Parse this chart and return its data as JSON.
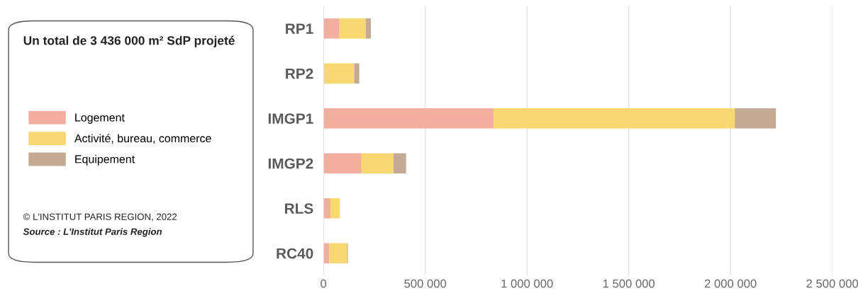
{
  "chart_data": {
    "type": "bar",
    "orientation": "horizontal",
    "stacked": true,
    "title": "Un total de 3 436 000 m² SdP projeté",
    "categories": [
      "RP1",
      "RP2",
      "IMGP1",
      "IMGP2",
      "RLS",
      "RC40"
    ],
    "series": [
      {
        "name": "Logement",
        "color": "#f4aea0",
        "values": [
          76000,
          5000,
          836000,
          187000,
          34000,
          28000
        ]
      },
      {
        "name": "Activité, bureau, commerce",
        "color": "#f9d773",
        "values": [
          132000,
          146000,
          1185000,
          157000,
          47000,
          88000
        ]
      },
      {
        "name": "Equipement",
        "color": "#c4a994",
        "values": [
          25000,
          25000,
          202000,
          62000,
          0,
          4000
        ]
      }
    ],
    "xlim": [
      0,
      2500000
    ],
    "xticks": [
      {
        "value": 0,
        "label": "0"
      },
      {
        "value": 500000,
        "label": "500 000"
      },
      {
        "value": 1000000,
        "label": "1 000 000"
      },
      {
        "value": 1500000,
        "label": "1 500 000"
      },
      {
        "value": 2000000,
        "label": "2 000 000"
      },
      {
        "value": 2500000,
        "label": "2 500 000"
      }
    ],
    "grid": "x",
    "legend": "left",
    "annotations": [
      "© L'INSTITUT PARIS REGION, 2022",
      "Source : L'Institut Paris Region"
    ]
  }
}
